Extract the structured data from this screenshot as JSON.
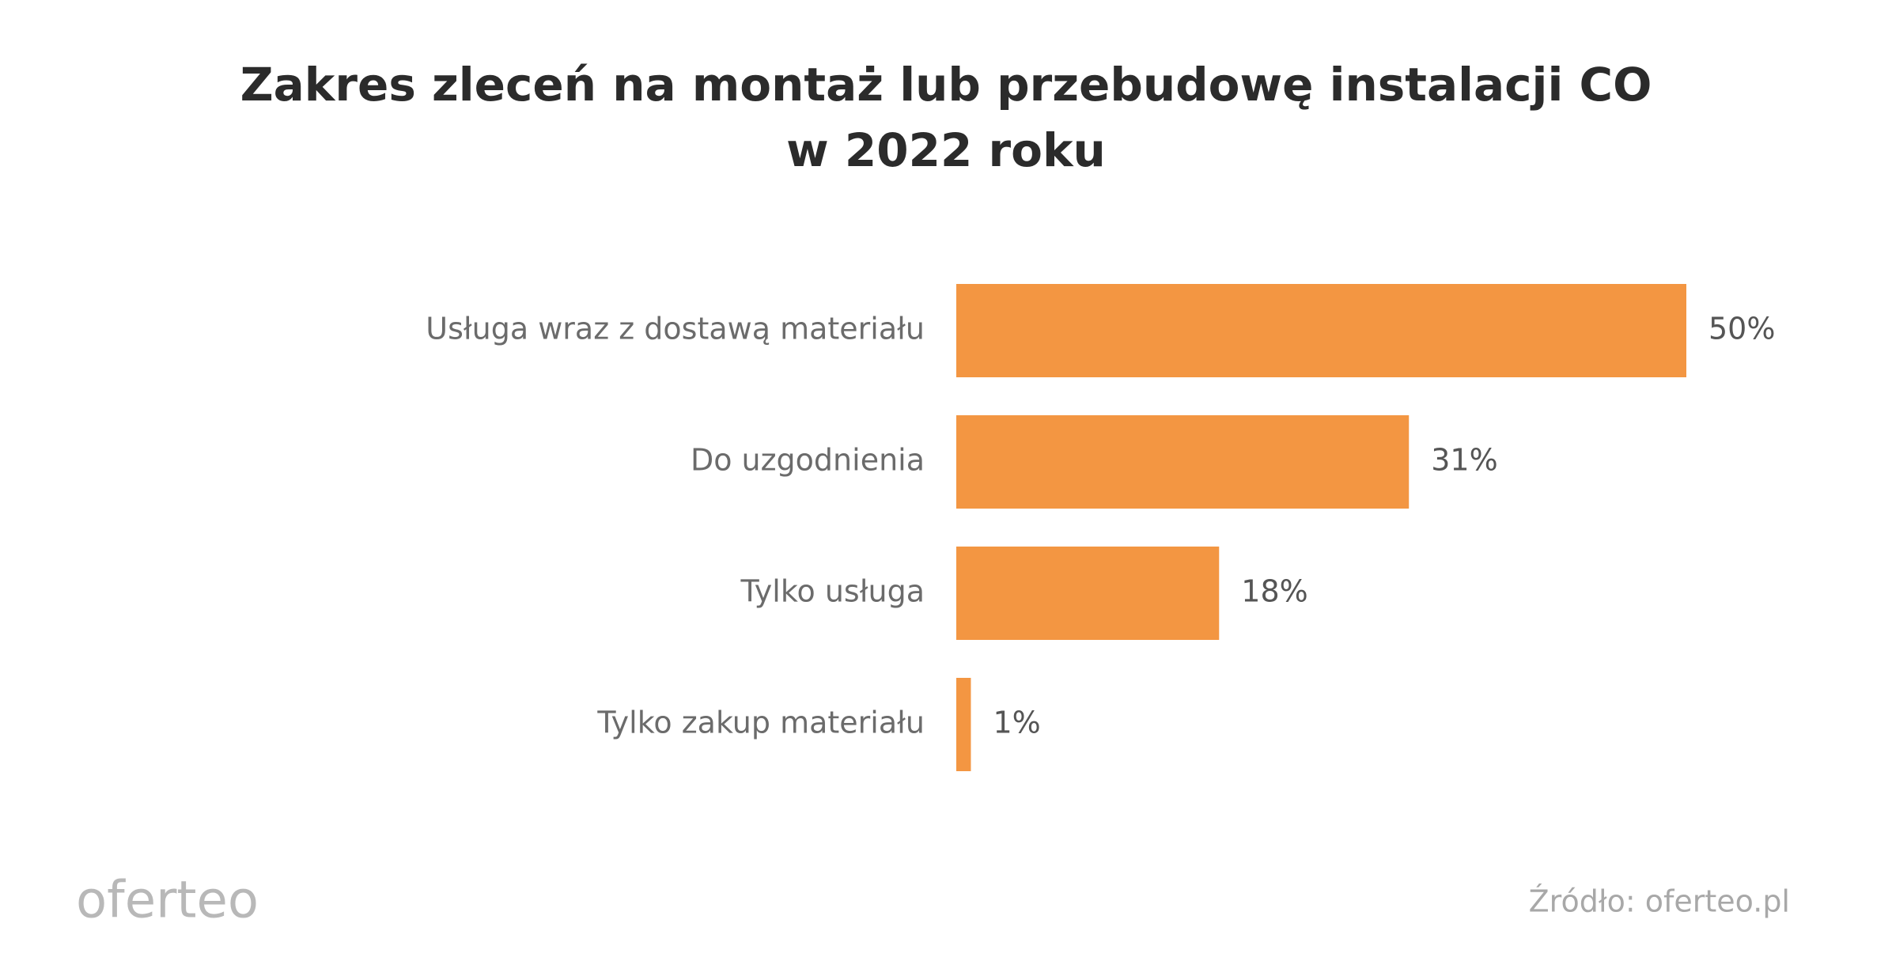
{
  "chart_data": {
    "type": "bar",
    "orientation": "horizontal",
    "title": [
      "Zakres zleceń na montaż lub przebudowę instalacji CO",
      "w 2022 roku"
    ],
    "categories": [
      "Usługa wraz z dostawą materiału",
      "Do uzgodnienia",
      "Tylko usługa",
      "Tylko zakup materiału"
    ],
    "values": [
      50,
      31,
      18,
      1
    ],
    "value_labels": [
      "50%",
      "31%",
      "18%",
      "1%"
    ],
    "color": "#f39642",
    "logo": "oferteo",
    "source": "Źródło: oferteo.pl"
  }
}
